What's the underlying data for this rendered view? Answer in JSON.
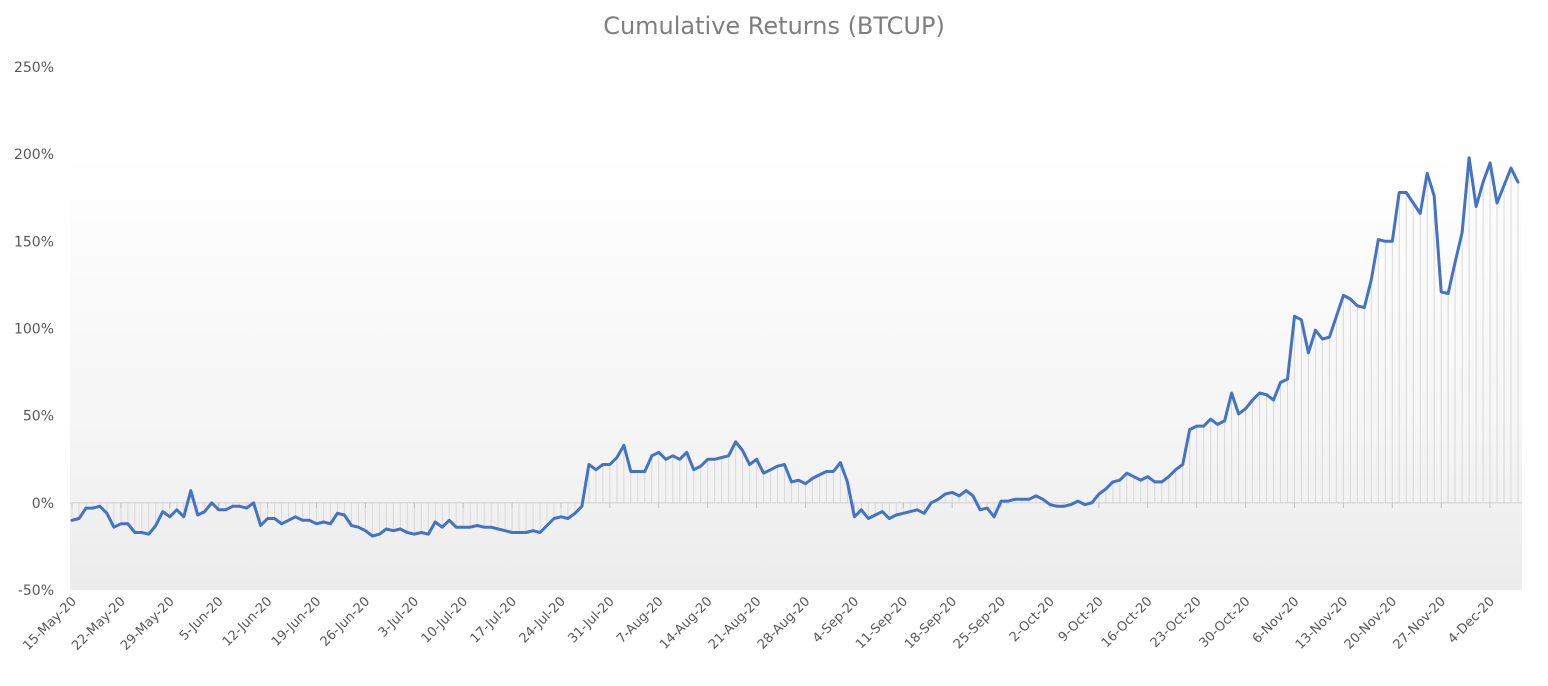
{
  "chart_data": {
    "type": "line",
    "title": "Cumulative Returns (BTCUP)",
    "xlabel": "",
    "ylabel": "",
    "ylim": [
      -50,
      250
    ],
    "y_tick_values": [
      -50,
      0,
      50,
      100,
      150,
      200,
      250
    ],
    "y_tick_labels": [
      "-50%",
      "0%",
      "50%",
      "100%",
      "150%",
      "200%",
      "250%"
    ],
    "x_tick_labels": [
      "15-May-20",
      "22-May-20",
      "29-May-20",
      "5-Jun-20",
      "12-Jun-20",
      "19-Jun-20",
      "26-Jun-20",
      "3-Jul-20",
      "10-Jul-20",
      "17-Jul-20",
      "24-Jul-20",
      "31-Jul-20",
      "7-Aug-20",
      "14-Aug-20",
      "21-Aug-20",
      "28-Aug-20",
      "4-Sep-20",
      "11-Sep-20",
      "18-Sep-20",
      "25-Sep-20",
      "2-Oct-20",
      "9-Oct-20",
      "16-Oct-20",
      "23-Oct-20",
      "30-Oct-20",
      "6-Nov-20",
      "13-Nov-20",
      "20-Nov-20",
      "27-Nov-20",
      "4-Dec-20"
    ],
    "series": [
      {
        "name": "",
        "color": "#4472c4",
        "values": [
          -10,
          -9,
          -3,
          -3,
          -2,
          -6,
          -14,
          -12,
          -12,
          -17,
          -17,
          -18,
          -13,
          -5,
          -8,
          -4,
          -8,
          7,
          -7,
          -5,
          0,
          -4,
          -4,
          -2,
          -2,
          -3,
          0,
          -13,
          -9,
          -9,
          -12,
          -10,
          -8,
          -10,
          -10,
          -12,
          -11,
          -12,
          -6,
          -7,
          -13,
          -14,
          -16,
          -19,
          -18,
          -15,
          -16,
          -15,
          -17,
          -18,
          -17,
          -18,
          -11,
          -14,
          -10,
          -14,
          -14,
          -14,
          -13,
          -14,
          -14,
          -15,
          -16,
          -17,
          -17,
          -17,
          -16,
          -17,
          -13,
          -9,
          -8,
          -9,
          -6,
          -2,
          22,
          19,
          22,
          22,
          26,
          33,
          18,
          18,
          18,
          27,
          29,
          25,
          27,
          25,
          29,
          19,
          21,
          25,
          25,
          26,
          27,
          35,
          30,
          22,
          25,
          17,
          19,
          21,
          22,
          12,
          13,
          11,
          14,
          16,
          18,
          18,
          23,
          12,
          -8,
          -4,
          -9,
          -7,
          -5,
          -9,
          -7,
          -6,
          -5,
          -4,
          -6,
          0,
          2,
          5,
          6,
          4,
          7,
          4,
          -4,
          -3,
          -8,
          1,
          1,
          2,
          2,
          2,
          4,
          2,
          -1,
          -2,
          -2,
          -1,
          1,
          -1,
          0,
          5,
          8,
          12,
          13,
          17,
          15,
          13,
          15,
          12,
          12,
          15,
          19,
          22,
          42,
          44,
          44,
          48,
          45,
          47,
          63,
          51,
          54,
          59,
          63,
          62,
          59,
          69,
          71,
          107,
          105,
          86,
          99,
          94,
          95,
          107,
          119,
          117,
          113,
          112,
          128,
          151,
          150,
          150,
          178,
          178,
          172,
          166,
          189,
          176,
          121,
          120,
          138,
          155,
          198,
          170,
          184,
          195,
          172,
          182,
          192,
          184
        ]
      }
    ],
    "grid": false,
    "legend": "none"
  }
}
